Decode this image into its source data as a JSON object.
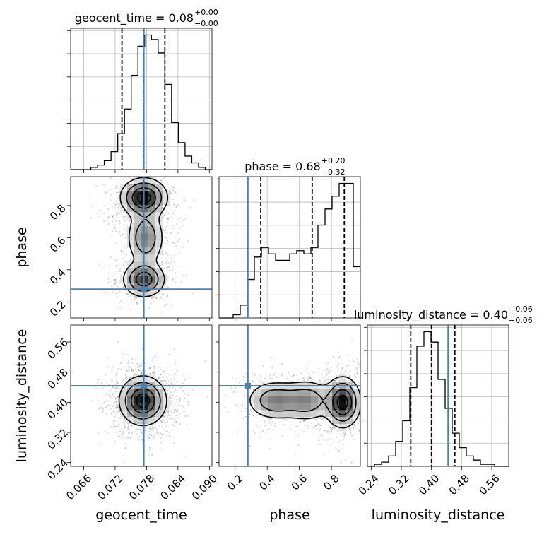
{
  "chart_data": {
    "type": "corner",
    "parameters": [
      "geocent_time",
      "phase",
      "luminosity_distance"
    ],
    "truth_color": "#4682b4",
    "hist_color": "#000000",
    "titles": [
      {
        "param": "geocent_time",
        "prefix": "geocent_time = 0.08",
        "sup": "+0.00",
        "sub": "−0.00"
      },
      {
        "param": "phase",
        "prefix": "phase = 0.68",
        "sup": "+0.20",
        "sub": "−0.32"
      },
      {
        "param": "luminosity_distance",
        "prefix": "luminosity_distance = 0.40",
        "sup": "+0.06",
        "sub": "−0.06"
      }
    ],
    "axis_labels": {
      "geocent_time": "geocent_time",
      "phase": "phase",
      "luminosity_distance": "luminosity_distance"
    },
    "ranges": {
      "geocent_time": [
        0.0635,
        0.0905
      ],
      "phase": [
        0.1,
        0.98
      ],
      "luminosity_distance": [
        0.23,
        0.605
      ]
    },
    "ticks": {
      "geocent_time": {
        "values": [
          0.066,
          0.072,
          0.078,
          0.084,
          0.09
        ],
        "labels": [
          "0.066",
          "0.072",
          "0.078",
          "0.084",
          "0.090"
        ]
      },
      "phase_x": {
        "values": [
          0.2,
          0.4,
          0.6,
          0.8
        ],
        "labels": [
          "0.2",
          "0.4",
          "0.6",
          "0.8"
        ]
      },
      "phase_y": {
        "values": [
          0.2,
          0.4,
          0.6,
          0.8
        ],
        "labels": [
          "0.2",
          "0.4",
          "0.6",
          "0.8"
        ]
      },
      "luminosity_distance": {
        "values": [
          0.24,
          0.32,
          0.4,
          0.48,
          0.56
        ],
        "labels": [
          "0.24",
          "0.32",
          "0.40",
          "0.48",
          "0.56"
        ]
      }
    },
    "truths": {
      "geocent_time": 0.0775,
      "phase": 0.28,
      "luminosity_distance": 0.444
    },
    "quantiles": {
      "geocent_time": [
        0.0733,
        0.0774,
        0.0815
      ],
      "phase": [
        0.36,
        0.68,
        0.88
      ],
      "luminosity_distance": [
        0.345,
        0.4,
        0.462
      ]
    },
    "histograms": {
      "geocent_time": {
        "range": [
          0.0635,
          0.0905
        ],
        "counts": [
          0,
          0,
          0,
          1,
          2,
          4,
          8,
          16,
          27,
          42,
          55,
          60,
          58,
          52,
          38,
          21,
          12,
          6,
          3,
          1,
          0
        ]
      },
      "phase": {
        "range": [
          0.1,
          0.98
        ],
        "counts": [
          0,
          0,
          1,
          4,
          12,
          19,
          22,
          20,
          18,
          18,
          20,
          21,
          20,
          22,
          29,
          34,
          38,
          42,
          42,
          16
        ]
      },
      "luminosity_distance": {
        "range": [
          0.23,
          0.605
        ],
        "counts": [
          0,
          1,
          2,
          5,
          12,
          22,
          38,
          58,
          65,
          60,
          42,
          28,
          16,
          9,
          5,
          3,
          1,
          1,
          0,
          0
        ]
      }
    },
    "density_blobs": {
      "phase_vs_geocent_time": [
        {
          "x": 0.0775,
          "y": 0.85,
          "sx": 0.0022,
          "sy": 0.06,
          "w": 1.0
        },
        {
          "x": 0.0778,
          "y": 0.6,
          "sx": 0.0018,
          "sy": 0.09,
          "w": 0.55
        },
        {
          "x": 0.0775,
          "y": 0.34,
          "sx": 0.002,
          "sy": 0.055,
          "w": 0.8
        }
      ],
      "luminosity_distance_vs_geocent_time": [
        {
          "x": 0.0773,
          "y": 0.404,
          "sx": 0.0022,
          "sy": 0.032,
          "w": 1.0
        }
      ],
      "luminosity_distance_vs_phase": [
        {
          "x": 0.87,
          "y": 0.4,
          "sx": 0.055,
          "sy": 0.033,
          "w": 1.0
        },
        {
          "x": 0.45,
          "y": 0.405,
          "sx": 0.09,
          "sy": 0.026,
          "w": 0.55
        },
        {
          "x": 0.65,
          "y": 0.405,
          "sx": 0.08,
          "sy": 0.028,
          "w": 0.5
        }
      ]
    }
  }
}
